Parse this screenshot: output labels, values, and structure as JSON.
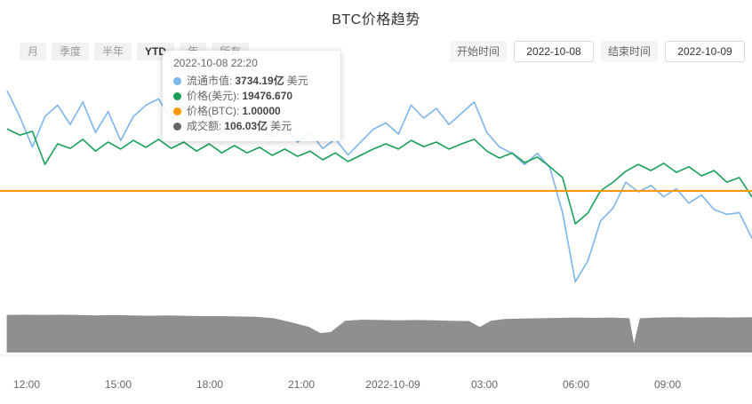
{
  "title": "BTC价格趋势",
  "toolbar": {
    "range_buttons": [
      {
        "id": "month",
        "label": "月",
        "active": false
      },
      {
        "id": "quarter",
        "label": "季度",
        "active": false
      },
      {
        "id": "half-year",
        "label": "半年",
        "active": false
      },
      {
        "id": "ytd",
        "label": "YTD",
        "active": true
      },
      {
        "id": "year",
        "label": "年",
        "active": false
      },
      {
        "id": "all",
        "label": "所有",
        "active": false
      }
    ],
    "start_time_label": "开始时间",
    "start_time_value": "2022-10-08",
    "end_time_label": "结束时间",
    "end_time_value": "2022-10-09"
  },
  "tooltip": {
    "datetime": "2022-10-08 22:20",
    "rows": [
      {
        "label": "流通市值",
        "value": "3734.19亿",
        "suffix": "美元",
        "color": "#7cb5ec"
      },
      {
        "label": "价格(美元)",
        "value": "19476.670",
        "suffix": "",
        "color": "#18a058"
      },
      {
        "label": "价格(BTC)",
        "value": "1.00000",
        "suffix": "",
        "color": "#ff9800"
      },
      {
        "label": "成交额",
        "value": "106.03亿",
        "suffix": "美元",
        "color": "#666666"
      }
    ]
  },
  "chart_data": {
    "type": "line",
    "title": "BTC价格趋势",
    "x_labels": [
      "12:00",
      "15:00",
      "18:00",
      "21:00",
      "2022-10-09",
      "03:00",
      "06:00",
      "09:00"
    ],
    "x_range": [
      "2022-10-08 12:00",
      "2022-10-09 11:45"
    ],
    "grid": false,
    "legend": "tooltip-only",
    "series": [
      {
        "id": "market_cap",
        "name": "流通市值",
        "unit": "亿 美元",
        "color": "#7cb5ec",
        "width": 1.6,
        "ylim": [
          3640,
          3770
        ],
        "values": [
          3766,
          3750,
          3731,
          3750,
          3757,
          3745,
          3759,
          3740,
          3753,
          3735,
          3750,
          3757,
          3761,
          3748,
          3756,
          3744,
          3751,
          3740,
          3749,
          3741,
          3746,
          3737,
          3744,
          3734,
          3740,
          3730,
          3736,
          3726,
          3734,
          3742,
          3746,
          3739,
          3757,
          3749,
          3755,
          3745,
          3752,
          3759,
          3740,
          3731,
          3727,
          3720,
          3727,
          3718,
          3690,
          3647,
          3660,
          3685,
          3693,
          3709,
          3703,
          3707,
          3700,
          3705,
          3696,
          3701,
          3692,
          3689,
          3690,
          3674
        ]
      },
      {
        "id": "price_usd",
        "name": "价格(美元)",
        "unit": "美元",
        "color": "#18a058",
        "width": 1.6,
        "ylim": [
          19050,
          19650
        ],
        "values": [
          19522,
          19504,
          19515,
          19420,
          19479,
          19466,
          19492,
          19458,
          19484,
          19464,
          19489,
          19469,
          19492,
          19466,
          19484,
          19458,
          19479,
          19453,
          19474,
          19453,
          19469,
          19446,
          19464,
          19443,
          19458,
          19433,
          19453,
          19428,
          19446,
          19464,
          19479,
          19464,
          19489,
          19471,
          19484,
          19464,
          19479,
          19492,
          19458,
          19438,
          19453,
          19425,
          19441,
          19413,
          19382,
          19249,
          19280,
          19344,
          19369,
          19400,
          19420,
          19402,
          19423,
          19397,
          19413,
          19387,
          19402,
          19369,
          19382,
          19326
        ]
      },
      {
        "id": "price_btc",
        "name": "价格(BTC)",
        "unit": "BTC",
        "color": "#ff9800",
        "width": 2,
        "ylim": [
          0,
          2.044
        ],
        "x": [
          0,
          1
        ],
        "values": [
          1.0,
          1.0
        ]
      },
      {
        "id": "volume",
        "name": "成交额",
        "unit": "亿 美元",
        "type": "area",
        "color": "#8f8f8f",
        "ylim": [
          0,
          118
        ],
        "x": [
          0.009,
          0.033,
          0.057,
          0.08,
          0.104,
          0.128,
          0.151,
          0.175,
          0.199,
          0.222,
          0.246,
          0.27,
          0.293,
          0.317,
          0.34,
          0.364,
          0.388,
          0.411,
          0.426,
          0.44,
          0.459,
          0.482,
          0.506,
          0.53,
          0.553,
          0.577,
          0.6,
          0.624,
          0.638,
          0.653,
          0.671,
          0.695,
          0.719,
          0.742,
          0.766,
          0.79,
          0.813,
          0.837,
          0.843,
          0.851,
          0.875,
          0.898,
          0.922,
          0.946,
          0.969,
          1.0
        ],
        "values": [
          106,
          107,
          106,
          107,
          106,
          105,
          106,
          105,
          104,
          105,
          104,
          103,
          103,
          102,
          101,
          97,
          85,
          72,
          55,
          58,
          90,
          93,
          92,
          91,
          92,
          91,
          90,
          89,
          72,
          90,
          95,
          96,
          97,
          98,
          99,
          98,
          99,
          97,
          25,
          97,
          99,
          100,
          99,
          100,
          99,
          100
        ]
      }
    ]
  }
}
